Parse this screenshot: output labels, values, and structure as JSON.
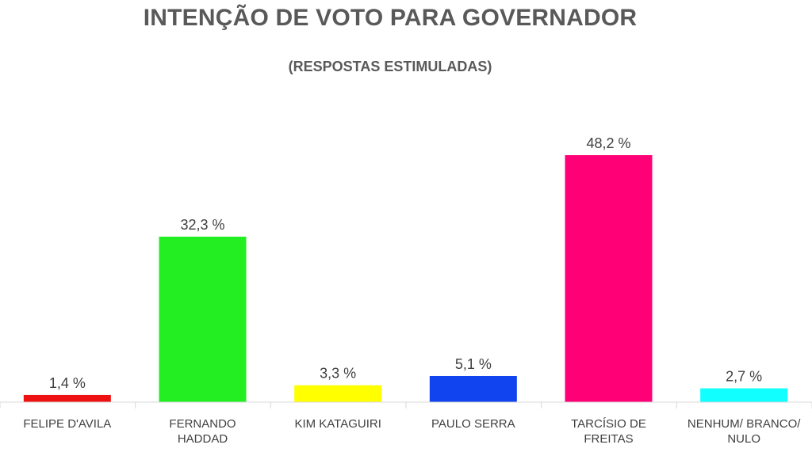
{
  "chart_data": {
    "type": "bar",
    "title": "INTENÇÃO DE VOTO PARA GOVERNADOR",
    "subtitle": "(RESPOSTAS ESTIMULADAS)",
    "categories": [
      [
        "FELIPE D'AVILA"
      ],
      [
        "FERNANDO",
        "HADDAD"
      ],
      [
        "KIM KATAGUIRI"
      ],
      [
        "PAULO SERRA"
      ],
      [
        "TARCÍSIO DE",
        "FREITAS"
      ],
      [
        "NENHUM/ BRANCO/",
        "NULO"
      ]
    ],
    "values": [
      1.4,
      32.3,
      3.3,
      5.1,
      48.2,
      2.7
    ],
    "value_labels": [
      "1,4 %",
      "32,3 %",
      "3,3 %",
      "5,1 %",
      "48,2 %",
      "2,7 %"
    ],
    "colors": [
      "#ee1111",
      "#22ee22",
      "#ffff00",
      "#1144ee",
      "#ff0077",
      "#11ffff"
    ],
    "ylim": [
      0,
      50
    ],
    "grid": false,
    "legend": "none",
    "xlabel": "",
    "ylabel": ""
  }
}
